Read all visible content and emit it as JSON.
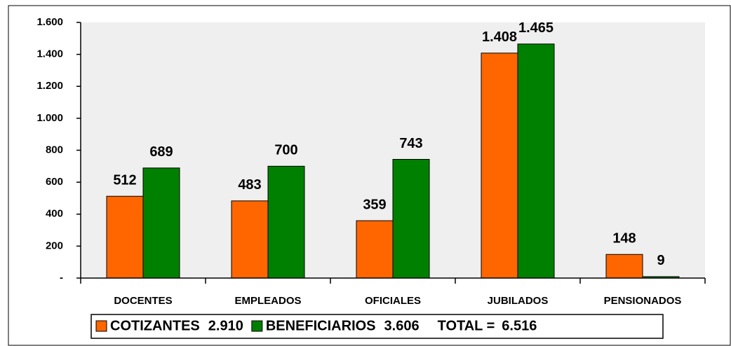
{
  "chart_data": {
    "type": "bar",
    "categories": [
      "DOCENTES",
      "EMPLEADOS",
      "OFICIALES",
      "JUBILADOS",
      "PENSIONADOS"
    ],
    "series": [
      {
        "name": "COTIZANTES",
        "total": "2.910",
        "color": "#ff6600",
        "values": [
          512,
          483,
          359,
          1408,
          148
        ],
        "value_labels": [
          "512",
          "483",
          "359",
          "1.408",
          "148"
        ]
      },
      {
        "name": "BENEFICIARIOS",
        "total": "3.606",
        "color": "#008000",
        "values": [
          689,
          700,
          743,
          1465,
          9
        ],
        "value_labels": [
          "689",
          "700",
          "743",
          "1.465",
          "9"
        ]
      }
    ],
    "grand_total": {
      "label": "TOTAL =",
      "value": "6.516"
    },
    "ylim": [
      0,
      1600
    ],
    "yticks": [
      {
        "value": 0,
        "label": "-"
      },
      200,
      400,
      600,
      800,
      {
        "value": 1000,
        "label": "1.000"
      },
      {
        "value": 1200,
        "label": "1.200"
      },
      {
        "value": 1400,
        "label": "1.400"
      },
      {
        "value": 1600,
        "label": "1.600"
      }
    ],
    "grid": false
  }
}
